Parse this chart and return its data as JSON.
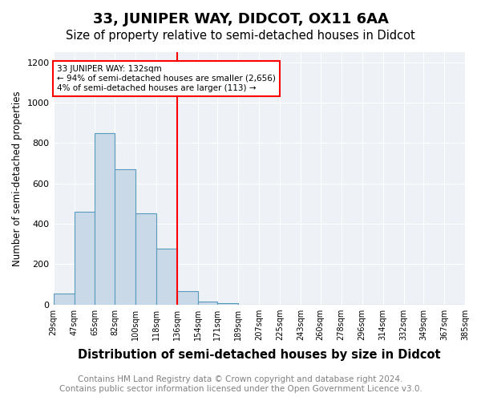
{
  "title": "33, JUNIPER WAY, DIDCOT, OX11 6AA",
  "subtitle": "Size of property relative to semi-detached houses in Didcot",
  "xlabel": "Distribution of semi-detached houses by size in Didcot",
  "ylabel": "Number of semi-detached properties",
  "bin_labels": [
    "29sqm",
    "47sqm",
    "65sqm",
    "82sqm",
    "100sqm",
    "118sqm",
    "136sqm",
    "154sqm",
    "171sqm",
    "189sqm",
    "207sqm",
    "225sqm",
    "243sqm",
    "260sqm",
    "278sqm",
    "296sqm",
    "314sqm",
    "332sqm",
    "349sqm",
    "367sqm",
    "385sqm"
  ],
  "bin_edges": [
    29,
    47,
    65,
    82,
    100,
    118,
    136,
    154,
    171,
    189,
    207,
    225,
    243,
    260,
    278,
    296,
    314,
    332,
    349,
    367,
    385
  ],
  "bar_heights": [
    55,
    460,
    850,
    670,
    450,
    275,
    65,
    15,
    5,
    0,
    0,
    0,
    0,
    0,
    0,
    0,
    0,
    0,
    0,
    0
  ],
  "bar_color": "#c9d9e8",
  "bar_edgecolor": "#5a9abf",
  "red_line_x": 136,
  "annotation_text_line1": "33 JUNIPER WAY: 132sqm",
  "annotation_text_line2": "← 94% of semi-detached houses are smaller (2,656)",
  "annotation_text_line3": "4% of semi-detached houses are larger (113) →",
  "ylim": [
    0,
    1250
  ],
  "yticks": [
    0,
    200,
    400,
    600,
    800,
    1000,
    1200
  ],
  "footer_line1": "Contains HM Land Registry data © Crown copyright and database right 2024.",
  "footer_line2": "Contains public sector information licensed under the Open Government Licence v3.0.",
  "bg_color": "#eef2f7",
  "title_fontsize": 13,
  "subtitle_fontsize": 10.5,
  "xlabel_fontsize": 10.5,
  "ylabel_fontsize": 8.5,
  "footer_fontsize": 7.5
}
